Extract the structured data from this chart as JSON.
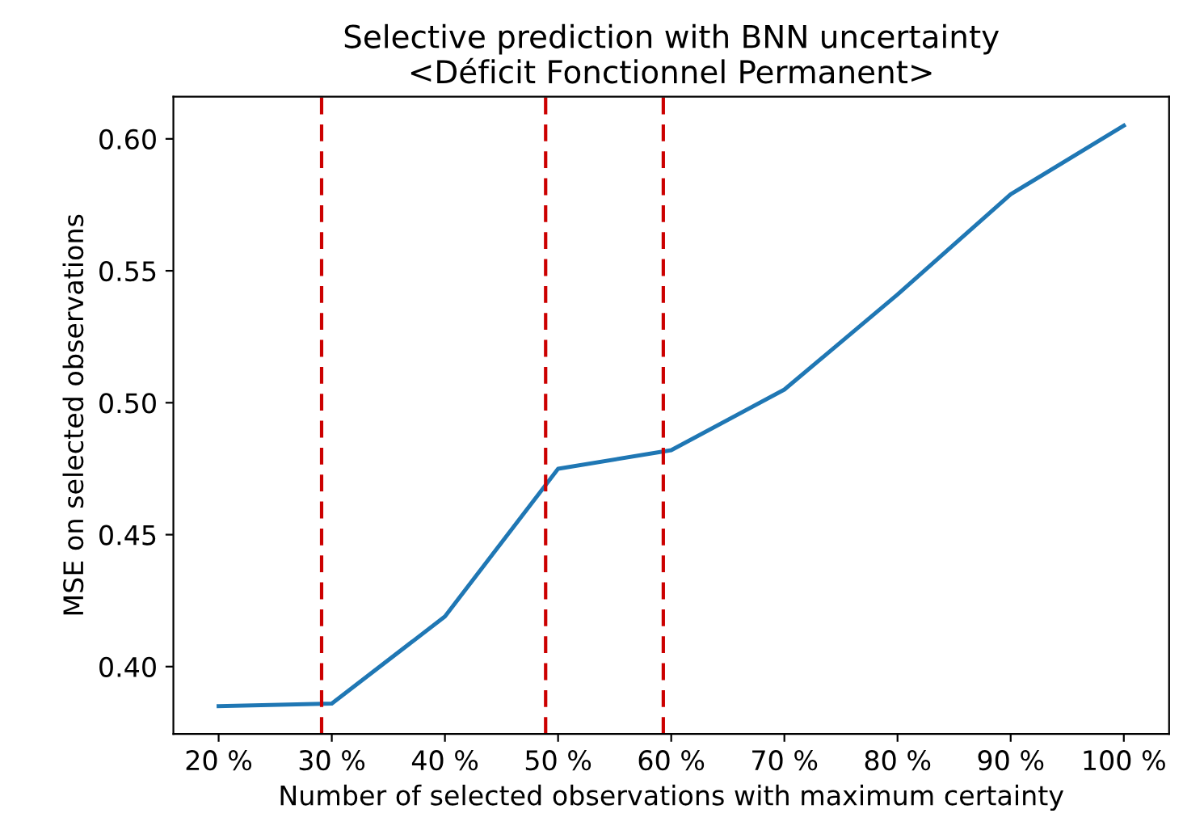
{
  "chart_data": {
    "type": "line",
    "title": "Selective prediction with BNN uncertainty\n<Déficit Fonctionnel Permanent>",
    "xlabel": "Number of selected observations with maximum certainty",
    "ylabel": "MSE on selected observations",
    "x": [
      20,
      30,
      40,
      50,
      60,
      70,
      80,
      90,
      100
    ],
    "series": [
      {
        "color": "#1f77b4",
        "values": [
          0.385,
          0.386,
          0.419,
          0.475,
          0.482,
          0.505,
          0.541,
          0.579,
          0.605
        ]
      }
    ],
    "xlim": [
      16,
      104
    ],
    "ylim": [
      0.3745,
      0.616
    ],
    "xticks": [
      {
        "value": 20,
        "label": "20 %"
      },
      {
        "value": 30,
        "label": "30 %"
      },
      {
        "value": 40,
        "label": "40 %"
      },
      {
        "value": 50,
        "label": "50 %"
      },
      {
        "value": 60,
        "label": "60 %"
      },
      {
        "value": 70,
        "label": "70 %"
      },
      {
        "value": 80,
        "label": "80 %"
      },
      {
        "value": 90,
        "label": "90 %"
      },
      {
        "value": 100,
        "label": "100 %"
      }
    ],
    "yticks": [
      {
        "value": 0.4,
        "label": "0.40"
      },
      {
        "value": 0.45,
        "label": "0.45"
      },
      {
        "value": 0.5,
        "label": "0.50"
      },
      {
        "value": 0.55,
        "label": "0.55"
      },
      {
        "value": 0.6,
        "label": "0.60"
      }
    ],
    "ref_lines": [
      {
        "axis": "x",
        "value": 29.1,
        "color": "#cc0000",
        "line_style": "dashed"
      },
      {
        "axis": "x",
        "value": 48.9,
        "color": "#cc0000",
        "line_style": "dashed"
      },
      {
        "axis": "x",
        "value": 59.3,
        "color": "#cc0000",
        "line_style": "dashed"
      }
    ],
    "grid": false
  }
}
